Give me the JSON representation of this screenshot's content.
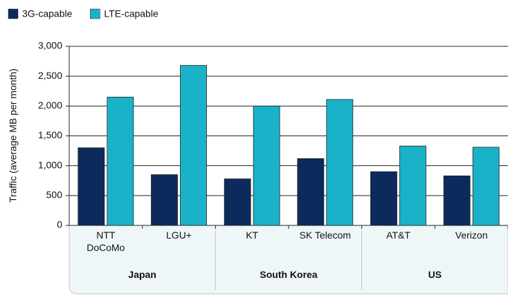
{
  "chart_data": {
    "type": "bar",
    "y_label": "Traffic (average MB per month)",
    "categories": [
      "NTT DoCoMo",
      "LGU+",
      "KT",
      "SK Telecom",
      "AT&T",
      "Verizon"
    ],
    "groups": [
      "Japan",
      "South Korea",
      "US"
    ],
    "series": [
      {
        "name": "3G-capable",
        "color": "#0c2a5c",
        "values": [
          1300,
          850,
          780,
          1120,
          900,
          830
        ]
      },
      {
        "name": "LTE-capable",
        "color": "#19b2c8",
        "values": [
          2150,
          2680,
          2000,
          2110,
          1330,
          1310
        ]
      }
    ],
    "ylim": [
      0,
      3000
    ],
    "yticks": [
      0,
      500,
      {
        "value": 1000,
        "label": "1,000"
      },
      {
        "value": 1500,
        "label": "1,500"
      },
      {
        "value": 2000,
        "label": "2,000"
      },
      {
        "value": 2500,
        "label": "2,500"
      },
      {
        "value": 3000,
        "label": "3,000"
      }
    ],
    "grid": true,
    "legend": "top-left"
  }
}
